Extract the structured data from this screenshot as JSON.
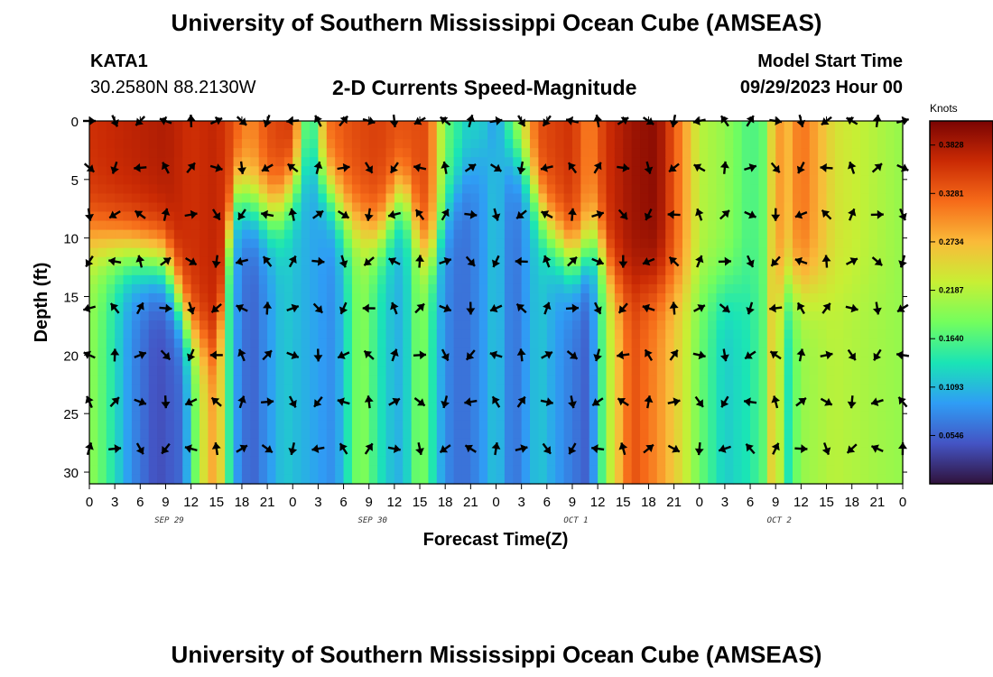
{
  "header": {
    "title": "University of Southern Mississippi Ocean Cube (AMSEAS)",
    "station": "KATA1",
    "coords": "30.2580N  88.2130W",
    "subtitle": "2-D Currents Speed-Magnitude",
    "model_start_label": "Model Start Time",
    "model_start_value": "09/29/2023 Hour 00"
  },
  "footer": {
    "title": "University of Southern Mississippi Ocean Cube (AMSEAS)"
  },
  "colors": {
    "ramp": [
      "#30123b",
      "#4454c4",
      "#2f9df5",
      "#1ae4b6",
      "#72fe5e",
      "#c8ef34",
      "#faba39",
      "#f66b19",
      "#ca2a04",
      "#7a0403"
    ]
  },
  "chart_data": {
    "type": "heatmap",
    "title": "2-D Currents Speed-Magnitude",
    "xlabel": "Forecast Time(Z)",
    "ylabel": "Depth (ft)",
    "x_ticks": [
      "0",
      "3",
      "6",
      "9",
      "12",
      "15",
      "18",
      "21",
      "0",
      "3",
      "6",
      "9",
      "12",
      "15",
      "18",
      "21",
      "0",
      "3",
      "6",
      "9",
      "12",
      "15",
      "18",
      "21",
      "0",
      "3",
      "6",
      "9",
      "12",
      "15",
      "18",
      "21",
      "0"
    ],
    "x_range_hours": [
      0,
      96
    ],
    "date_labels": [
      {
        "label": "SEP 29",
        "hour": 9
      },
      {
        "label": "SEP 30",
        "hour": 33
      },
      {
        "label": "OCT 1",
        "hour": 57
      },
      {
        "label": "OCT 2",
        "hour": 81
      }
    ],
    "y_ticks": [
      "0",
      "5",
      "10",
      "15",
      "20",
      "25",
      "30"
    ],
    "ylim": [
      31,
      0
    ],
    "colorbar": {
      "unit": "Knots",
      "min": 0.0,
      "max": 0.41,
      "labels": [
        {
          "text": "0.3828",
          "value": 0.3828
        },
        {
          "text": "0.3281",
          "value": 0.3281
        },
        {
          "text": "0.2734",
          "value": 0.2734
        },
        {
          "text": "0.2187",
          "value": 0.2187
        },
        {
          "text": "0.1640",
          "value": 0.164
        },
        {
          "text": "0.1093",
          "value": 0.1093
        },
        {
          "text": "0.0546",
          "value": 0.0546
        }
      ]
    },
    "speed_profile_surface": [
      [
        0,
        0.36
      ],
      [
        4,
        0.37
      ],
      [
        9,
        0.38
      ],
      [
        12,
        0.36
      ],
      [
        15,
        0.37
      ],
      [
        17,
        0.34
      ],
      [
        19,
        0.3
      ],
      [
        21,
        0.34
      ],
      [
        24,
        0.36
      ],
      [
        26,
        0.12
      ],
      [
        28,
        0.32
      ],
      [
        31,
        0.34
      ],
      [
        34,
        0.35
      ],
      [
        36,
        0.34
      ],
      [
        40,
        0.34
      ],
      [
        42,
        0.18
      ],
      [
        45,
        0.12
      ],
      [
        46,
        0.14
      ],
      [
        48,
        0.08
      ],
      [
        50,
        0.2
      ],
      [
        53,
        0.34
      ],
      [
        57,
        0.36
      ],
      [
        59,
        0.3
      ],
      [
        61,
        0.36
      ],
      [
        64,
        0.39
      ],
      [
        67,
        0.4
      ],
      [
        70,
        0.3
      ],
      [
        72,
        0.22
      ],
      [
        75,
        0.2
      ],
      [
        78,
        0.16
      ],
      [
        80,
        0.18
      ],
      [
        81,
        0.32
      ],
      [
        82,
        0.26
      ],
      [
        84,
        0.32
      ],
      [
        88,
        0.24
      ],
      [
        96,
        0.2
      ]
    ],
    "speed_profile_deep": [
      [
        0,
        0.2
      ],
      [
        2,
        0.16
      ],
      [
        5,
        0.08
      ],
      [
        8,
        0.04
      ],
      [
        11,
        0.06
      ],
      [
        13,
        0.22
      ],
      [
        15,
        0.3
      ],
      [
        17,
        0.1
      ],
      [
        19,
        0.05
      ],
      [
        23,
        0.12
      ],
      [
        26,
        0.1
      ],
      [
        29,
        0.08
      ],
      [
        32,
        0.2
      ],
      [
        35,
        0.12
      ],
      [
        37,
        0.1
      ],
      [
        39,
        0.2
      ],
      [
        42,
        0.08
      ],
      [
        44,
        0.06
      ],
      [
        46,
        0.08
      ],
      [
        48,
        0.12
      ],
      [
        50,
        0.06
      ],
      [
        53,
        0.12
      ],
      [
        56,
        0.08
      ],
      [
        59,
        0.05
      ],
      [
        61,
        0.2
      ],
      [
        64,
        0.34
      ],
      [
        67,
        0.3
      ],
      [
        70,
        0.24
      ],
      [
        72,
        0.18
      ],
      [
        75,
        0.12
      ],
      [
        78,
        0.14
      ],
      [
        80,
        0.18
      ],
      [
        81,
        0.32
      ],
      [
        82,
        0.12
      ],
      [
        84,
        0.2
      ],
      [
        88,
        0.22
      ],
      [
        96,
        0.2
      ]
    ],
    "transition_depth_ft": [
      [
        0,
        10
      ],
      [
        9,
        12
      ],
      [
        12,
        18
      ],
      [
        15,
        20
      ],
      [
        17,
        6
      ],
      [
        22,
        8
      ],
      [
        26,
        3
      ],
      [
        30,
        8
      ],
      [
        34,
        10
      ],
      [
        37,
        6
      ],
      [
        40,
        12
      ],
      [
        43,
        6
      ],
      [
        47,
        2
      ],
      [
        51,
        3
      ],
      [
        54,
        9
      ],
      [
        57,
        12
      ],
      [
        60,
        10
      ],
      [
        62,
        14
      ],
      [
        64,
        14
      ],
      [
        72,
        14
      ],
      [
        96,
        14
      ]
    ],
    "arrow_depths_ft": [
      0,
      4,
      8,
      12,
      16,
      20,
      24,
      28
    ],
    "arrow_hours": [
      0,
      3,
      6,
      9,
      12,
      15,
      18,
      21,
      24,
      27,
      30,
      33,
      36,
      39,
      42,
      45,
      48,
      51,
      54,
      57,
      60,
      63,
      66,
      69,
      72,
      75,
      78,
      81,
      84,
      87,
      90,
      93,
      96
    ]
  }
}
